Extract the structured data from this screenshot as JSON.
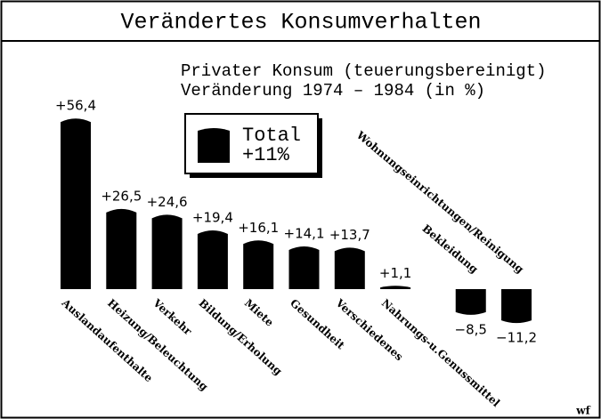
{
  "chart_data": {
    "type": "bar",
    "title": "Verändertes Konsumverhalten",
    "subtitle": [
      "Privater Konsum (teuerungsbereinigt)",
      "Veränderung 1974 – 1984 (in %)"
    ],
    "categories": [
      "Auslandaufenthalte",
      "Heizung/Beleuchtung",
      "Verkehr",
      "Bildung/Erholung",
      "Miete",
      "Gesundheit",
      "Verschiedenes",
      "Nahrungs-u.Genussmittel",
      "Bekleidung",
      "Wohnungseinrichtungen/Reinigung"
    ],
    "values": [
      56.4,
      26.5,
      24.6,
      19.4,
      16.1,
      14.1,
      13.7,
      1.1,
      -8.5,
      -11.2
    ],
    "value_labels": [
      "+56,4",
      "+26,5",
      "+24,6",
      "+19,4",
      "+16,1",
      "+14,1",
      "+13,7",
      "+1,1",
      "−8,5",
      "−11,2"
    ],
    "color": "#000000",
    "legend_box": {
      "title": "Total",
      "text": "+11%"
    },
    "source": "wf"
  }
}
